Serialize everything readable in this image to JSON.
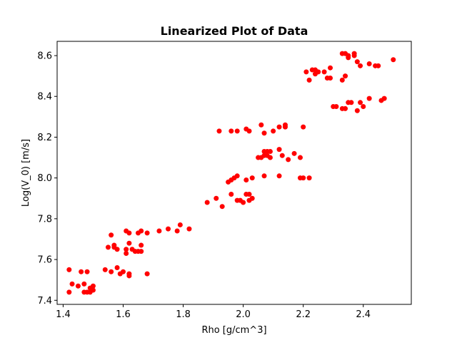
{
  "chart_data": {
    "type": "scatter",
    "title": "Linearized Plot of Data",
    "xlabel": "Rho [g/cm^3]",
    "ylabel": "Log(V_0) [m/s]",
    "xlim": [
      1.38,
      2.56
    ],
    "ylim": [
      7.38,
      8.67
    ],
    "xticks": [
      1.4,
      1.6,
      1.8,
      2.0,
      2.2,
      2.4
    ],
    "xtick_labels": [
      "1.4",
      "1.6",
      "1.8",
      "2.0",
      "2.2",
      "2.4"
    ],
    "yticks": [
      7.4,
      7.6,
      7.8,
      8.0,
      8.2,
      8.4,
      8.6
    ],
    "ytick_labels": [
      "7.4",
      "7.6",
      "7.8",
      "8.0",
      "8.2",
      "8.4",
      "8.6"
    ],
    "grid": false,
    "marker_color": "#ff0000",
    "points": [
      [
        1.42,
        7.55
      ],
      [
        1.42,
        7.44
      ],
      [
        1.43,
        7.48
      ],
      [
        1.45,
        7.47
      ],
      [
        1.46,
        7.54
      ],
      [
        1.47,
        7.44
      ],
      [
        1.47,
        7.48
      ],
      [
        1.48,
        7.54
      ],
      [
        1.48,
        7.44
      ],
      [
        1.49,
        7.44
      ],
      [
        1.49,
        7.46
      ],
      [
        1.5,
        7.47
      ],
      [
        1.5,
        7.45
      ],
      [
        1.54,
        7.55
      ],
      [
        1.55,
        7.66
      ],
      [
        1.56,
        7.72
      ],
      [
        1.56,
        7.54
      ],
      [
        1.57,
        7.66
      ],
      [
        1.57,
        7.67
      ],
      [
        1.58,
        7.56
      ],
      [
        1.58,
        7.65
      ],
      [
        1.59,
        7.53
      ],
      [
        1.6,
        7.54
      ],
      [
        1.61,
        7.65
      ],
      [
        1.61,
        7.63
      ],
      [
        1.61,
        7.74
      ],
      [
        1.62,
        7.52
      ],
      [
        1.62,
        7.73
      ],
      [
        1.62,
        7.68
      ],
      [
        1.62,
        7.53
      ],
      [
        1.63,
        7.65
      ],
      [
        1.64,
        7.64
      ],
      [
        1.65,
        7.73
      ],
      [
        1.65,
        7.64
      ],
      [
        1.66,
        7.67
      ],
      [
        1.66,
        7.64
      ],
      [
        1.66,
        7.74
      ],
      [
        1.68,
        7.53
      ],
      [
        1.68,
        7.73
      ],
      [
        1.72,
        7.74
      ],
      [
        1.75,
        7.75
      ],
      [
        1.78,
        7.74
      ],
      [
        1.79,
        7.77
      ],
      [
        1.82,
        7.75
      ],
      [
        1.88,
        7.88
      ],
      [
        1.91,
        7.9
      ],
      [
        1.93,
        7.86
      ],
      [
        1.95,
        7.98
      ],
      [
        1.96,
        7.99
      ],
      [
        1.96,
        7.92
      ],
      [
        1.97,
        8.0
      ],
      [
        1.98,
        8.01
      ],
      [
        1.98,
        7.89
      ],
      [
        1.99,
        7.89
      ],
      [
        2.0,
        7.88
      ],
      [
        2.01,
        7.99
      ],
      [
        2.01,
        7.92
      ],
      [
        2.02,
        7.92
      ],
      [
        2.02,
        7.89
      ],
      [
        2.03,
        8.0
      ],
      [
        2.03,
        7.9
      ],
      [
        2.05,
        8.1
      ],
      [
        2.06,
        8.1
      ],
      [
        2.07,
        8.11
      ],
      [
        2.07,
        8.13
      ],
      [
        2.07,
        8.01
      ],
      [
        2.08,
        8.13
      ],
      [
        2.08,
        8.11
      ],
      [
        2.09,
        8.13
      ],
      [
        2.09,
        8.1
      ],
      [
        2.12,
        8.01
      ],
      [
        2.12,
        8.14
      ],
      [
        2.13,
        8.11
      ],
      [
        2.15,
        8.09
      ],
      [
        2.17,
        8.12
      ],
      [
        2.19,
        8.1
      ],
      [
        2.19,
        8.0
      ],
      [
        2.2,
        8.0
      ],
      [
        2.22,
        8.0
      ],
      [
        1.92,
        8.23
      ],
      [
        1.96,
        8.23
      ],
      [
        1.98,
        8.23
      ],
      [
        2.01,
        8.24
      ],
      [
        2.02,
        8.23
      ],
      [
        2.06,
        8.26
      ],
      [
        2.07,
        8.22
      ],
      [
        2.1,
        8.23
      ],
      [
        2.12,
        8.25
      ],
      [
        2.14,
        8.25
      ],
      [
        2.14,
        8.26
      ],
      [
        2.2,
        8.25
      ],
      [
        2.21,
        8.52
      ],
      [
        2.22,
        8.48
      ],
      [
        2.23,
        8.53
      ],
      [
        2.24,
        8.51
      ],
      [
        2.24,
        8.53
      ],
      [
        2.25,
        8.52
      ],
      [
        2.27,
        8.52
      ],
      [
        2.28,
        8.49
      ],
      [
        2.29,
        8.54
      ],
      [
        2.29,
        8.49
      ],
      [
        2.3,
        8.35
      ],
      [
        2.31,
        8.35
      ],
      [
        2.33,
        8.61
      ],
      [
        2.33,
        8.34
      ],
      [
        2.33,
        8.48
      ],
      [
        2.34,
        8.34
      ],
      [
        2.34,
        8.5
      ],
      [
        2.34,
        8.61
      ],
      [
        2.35,
        8.59
      ],
      [
        2.35,
        8.6
      ],
      [
        2.35,
        8.37
      ],
      [
        2.36,
        8.37
      ],
      [
        2.37,
        8.61
      ],
      [
        2.37,
        8.6
      ],
      [
        2.38,
        8.57
      ],
      [
        2.38,
        8.33
      ],
      [
        2.39,
        8.37
      ],
      [
        2.39,
        8.55
      ],
      [
        2.4,
        8.35
      ],
      [
        2.42,
        8.56
      ],
      [
        2.42,
        8.39
      ],
      [
        2.44,
        8.55
      ],
      [
        2.45,
        8.55
      ],
      [
        2.46,
        8.38
      ],
      [
        2.47,
        8.39
      ],
      [
        2.5,
        8.58
      ]
    ]
  }
}
